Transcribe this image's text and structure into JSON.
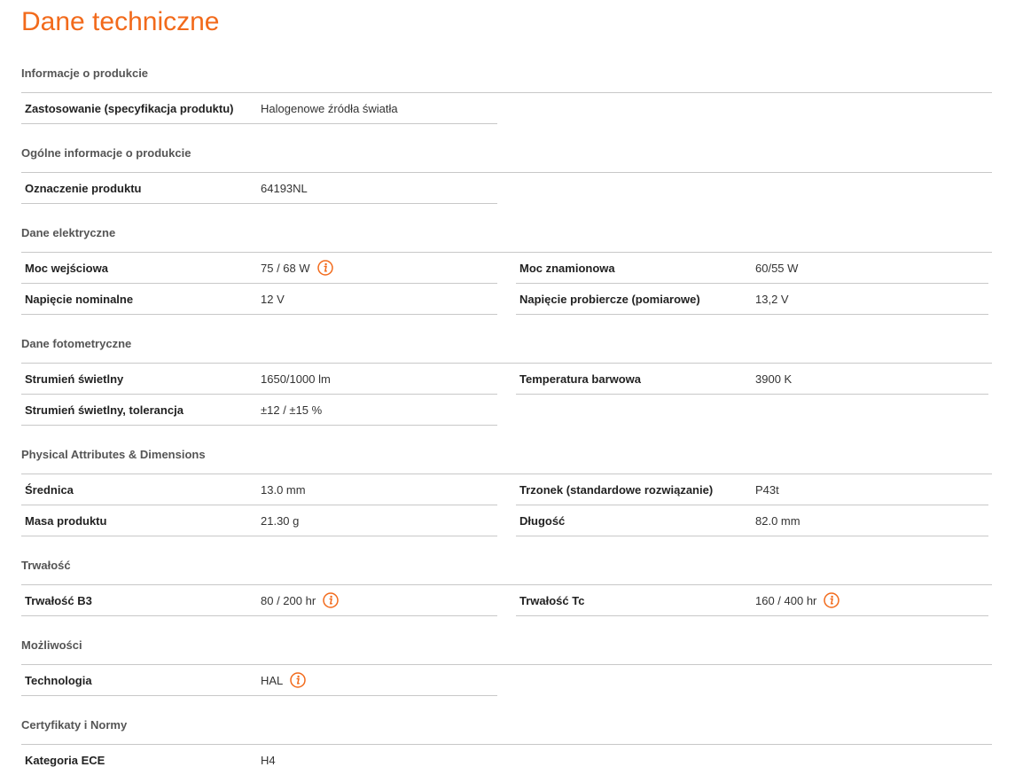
{
  "title": "Dane techniczne",
  "sections": [
    {
      "name": "Informacje o produkcie",
      "rows": [
        [
          {
            "label": "Zastosowanie (specyfikacja produktu)",
            "value": "Halogenowe źródła światła"
          }
        ]
      ]
    },
    {
      "name": "Ogólne informacje o produkcie",
      "rows": [
        [
          {
            "label": "Oznaczenie produktu",
            "value": "64193NL"
          }
        ]
      ]
    },
    {
      "name": "Dane elektryczne",
      "rows": [
        [
          {
            "label": "Moc wejściowa",
            "value": "75 / 68 W",
            "info": true
          },
          {
            "label": "Moc znamionowa",
            "value": "60/55 W"
          }
        ],
        [
          {
            "label": "Napięcie nominalne",
            "value": "12 V"
          },
          {
            "label": "Napięcie probiercze (pomiarowe)",
            "value": "13,2 V"
          }
        ]
      ]
    },
    {
      "name": "Dane fotometryczne",
      "rows": [
        [
          {
            "label": "Strumień świetlny",
            "value": "1650/1000 lm"
          },
          {
            "label": "Temperatura barwowa",
            "value": "3900 K"
          }
        ],
        [
          {
            "label": "Strumień świetlny, tolerancja",
            "value": "±12 / ±15 %"
          }
        ]
      ]
    },
    {
      "name": "Physical Attributes & Dimensions",
      "rows": [
        [
          {
            "label": "Średnica",
            "value": "13.0 mm"
          },
          {
            "label": "Trzonek (standardowe rozwiązanie)",
            "value": "P43t"
          }
        ],
        [
          {
            "label": "Masa produktu",
            "value": "21.30 g"
          },
          {
            "label": "Długość",
            "value": "82.0 mm"
          }
        ]
      ]
    },
    {
      "name": "Trwałość",
      "rows": [
        [
          {
            "label": "Trwałość B3",
            "value": "80 / 200 hr",
            "info": true
          },
          {
            "label": "Trwałość Tc",
            "value": "160 / 400 hr",
            "info": true
          }
        ]
      ]
    },
    {
      "name": "Możliwości",
      "rows": [
        [
          {
            "label": "Technologia",
            "value": "HAL",
            "info": true
          }
        ]
      ]
    },
    {
      "name": "Certyfikaty i Normy",
      "rows": [
        [
          {
            "label": "Kategoria ECE",
            "value": "H4"
          }
        ]
      ]
    }
  ]
}
